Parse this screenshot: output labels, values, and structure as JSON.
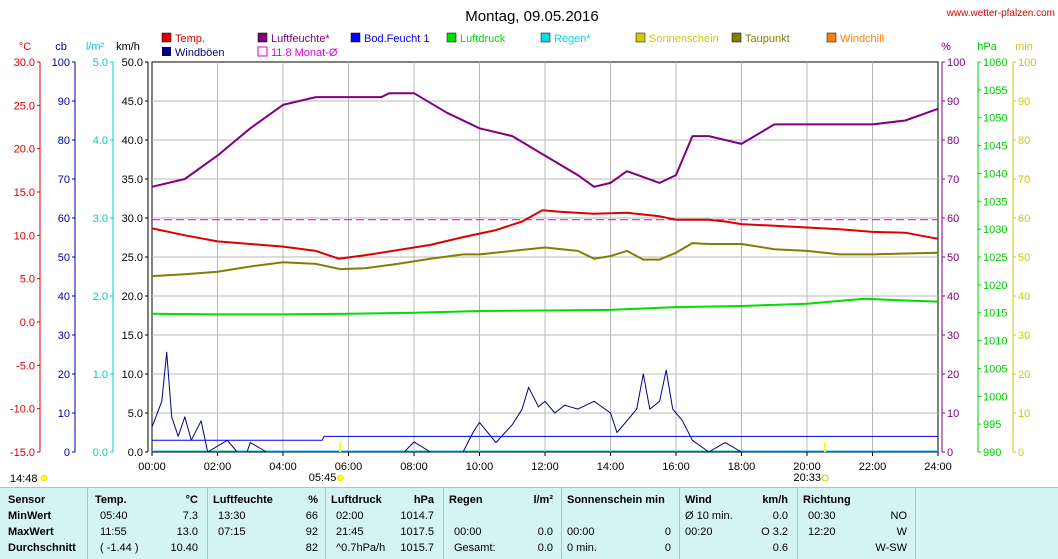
{
  "header": {
    "title": "Montag, 09.05.2016",
    "site": "www.wetter-pfalzen.com"
  },
  "axes": {
    "left_units": [
      "°C",
      "cb",
      "l/m²",
      "km/h"
    ],
    "right_units": [
      "%",
      "hPa",
      "min"
    ],
    "temp_ticks": [
      "30.0",
      "25.0",
      "20.0",
      "15.0",
      "10.0",
      "5.0",
      "0.0",
      "-5.0",
      "-10.0",
      "-15.0"
    ],
    "cb_ticks": [
      "100",
      "90",
      "80",
      "70",
      "60",
      "50",
      "40",
      "30",
      "20",
      "10",
      "0"
    ],
    "rain_ticks": [
      "5.0",
      "4.0",
      "3.0",
      "2.0",
      "1.0",
      "0.0"
    ],
    "wind_ticks": [
      "50.0",
      "45.0",
      "40.0",
      "35.0",
      "30.0",
      "25.0",
      "20.0",
      "15.0",
      "10.0",
      "5.0",
      "0.0"
    ],
    "hum_ticks": [
      "100",
      "90",
      "80",
      "70",
      "60",
      "50",
      "40",
      "30",
      "20",
      "10",
      "0"
    ],
    "pres_ticks": [
      "1060",
      "1055",
      "1050",
      "1045",
      "1040",
      "1035",
      "1030",
      "1025",
      "1020",
      "1015",
      "1010",
      "1005",
      "1000",
      "995",
      "990"
    ],
    "sun_ticks": [
      "100",
      "90",
      "80",
      "70",
      "60",
      "50",
      "40",
      "30",
      "20",
      "10",
      "0"
    ],
    "x_ticks": [
      "00:00",
      "02:00",
      "04:00",
      "06:00",
      "08:00",
      "10:00",
      "12:00",
      "14:00",
      "16:00",
      "18:00",
      "20:00",
      "22:00",
      "24:00"
    ]
  },
  "sun_events": {
    "left_time": "14:48",
    "sunrise": "05:45",
    "sunset": "20:33"
  },
  "legend": {
    "row1": [
      {
        "label": "Temp.",
        "color": "#dd0000"
      },
      {
        "label": "Luftfeuchte*",
        "color": "#800080"
      },
      {
        "label": "Bod.Feucht 1",
        "color": "#0000ff"
      },
      {
        "label": "Luftdruck",
        "color": "#00dd00"
      },
      {
        "label": "Regen*",
        "color": "#00dddd"
      },
      {
        "label": "Sonnenschein",
        "color": "#cccc00"
      },
      {
        "label": "Taupunkt",
        "color": "#808000"
      },
      {
        "label": "Windchill",
        "color": "#ff8000"
      }
    ],
    "row2": [
      {
        "label": "Windböen",
        "color": "#000080"
      },
      {
        "label": "11.8 Monat-Ø",
        "color": "#dd00dd"
      }
    ]
  },
  "chart_data": {
    "type": "line",
    "x_unit": "hours",
    "xlim": [
      0,
      24
    ],
    "temp_ylim": [
      -15,
      30
    ],
    "hum_ylim": [
      0,
      100
    ],
    "pres_ylim": [
      990,
      1060
    ],
    "wind_ylim": [
      0,
      50
    ],
    "monthly_avg_temp": 11.8,
    "series": [
      {
        "name": "Temp.",
        "axis": "temp",
        "color": "#dd0000",
        "points": [
          [
            0,
            10.8
          ],
          [
            1,
            10.0
          ],
          [
            2,
            9.3
          ],
          [
            3,
            9.0
          ],
          [
            4,
            8.7
          ],
          [
            5,
            8.2
          ],
          [
            5.7,
            7.3
          ],
          [
            6.5,
            7.7
          ],
          [
            7.5,
            8.3
          ],
          [
            8.5,
            8.9
          ],
          [
            9.5,
            9.8
          ],
          [
            10.5,
            10.6
          ],
          [
            11.3,
            11.6
          ],
          [
            11.92,
            12.9
          ],
          [
            12.5,
            12.7
          ],
          [
            13.5,
            12.5
          ],
          [
            14.5,
            12.6
          ],
          [
            15.5,
            12.2
          ],
          [
            16,
            11.8
          ],
          [
            17,
            11.8
          ],
          [
            17.5,
            11.6
          ],
          [
            18,
            11.3
          ],
          [
            19,
            11.1
          ],
          [
            20,
            10.9
          ],
          [
            21,
            10.7
          ],
          [
            22,
            10.4
          ],
          [
            23,
            10.3
          ],
          [
            24,
            9.6
          ]
        ]
      },
      {
        "name": "Luftfeuchte*",
        "axis": "hum",
        "color": "#800080",
        "points": [
          [
            0,
            68
          ],
          [
            1,
            70
          ],
          [
            2,
            76
          ],
          [
            3,
            83
          ],
          [
            4,
            89
          ],
          [
            5,
            91
          ],
          [
            6,
            91
          ],
          [
            7,
            91
          ],
          [
            7.25,
            92
          ],
          [
            8,
            92
          ],
          [
            9,
            87
          ],
          [
            10,
            83
          ],
          [
            11,
            81
          ],
          [
            12,
            76
          ],
          [
            13,
            71
          ],
          [
            13.5,
            68
          ],
          [
            14,
            69
          ],
          [
            14.5,
            72
          ],
          [
            15.5,
            69
          ],
          [
            16,
            71
          ],
          [
            16.5,
            81
          ],
          [
            17,
            81
          ],
          [
            18,
            79
          ],
          [
            19,
            84
          ],
          [
            20,
            84
          ],
          [
            21,
            84
          ],
          [
            22,
            84
          ],
          [
            23,
            85
          ],
          [
            24,
            88
          ]
        ]
      },
      {
        "name": "Taupunkt",
        "axis": "temp",
        "color": "#808000",
        "points": [
          [
            0,
            5.3
          ],
          [
            1,
            5.5
          ],
          [
            2,
            5.8
          ],
          [
            3,
            6.4
          ],
          [
            4,
            6.9
          ],
          [
            5,
            6.7
          ],
          [
            5.75,
            6.1
          ],
          [
            6.5,
            6.2
          ],
          [
            7.5,
            6.7
          ],
          [
            8.5,
            7.3
          ],
          [
            9.5,
            7.8
          ],
          [
            10,
            7.8
          ],
          [
            11,
            8.2
          ],
          [
            12,
            8.6
          ],
          [
            13,
            8.2
          ],
          [
            13.5,
            7.3
          ],
          [
            14,
            7.6
          ],
          [
            14.5,
            8.2
          ],
          [
            15,
            7.2
          ],
          [
            15.5,
            7.2
          ],
          [
            16,
            8.0
          ],
          [
            16.5,
            9.1
          ],
          [
            17,
            9.0
          ],
          [
            18,
            9.0
          ],
          [
            19,
            8.4
          ],
          [
            20,
            8.2
          ],
          [
            21,
            7.8
          ],
          [
            22,
            7.8
          ],
          [
            23,
            7.9
          ],
          [
            24,
            8.0
          ]
        ]
      },
      {
        "name": "Luftdruck",
        "axis": "pres",
        "color": "#00dd00",
        "points": [
          [
            0,
            1014.8
          ],
          [
            2,
            1014.7
          ],
          [
            4,
            1014.7
          ],
          [
            6,
            1014.8
          ],
          [
            8,
            1015.0
          ],
          [
            10,
            1015.3
          ],
          [
            12,
            1015.4
          ],
          [
            14,
            1015.5
          ],
          [
            16,
            1016.0
          ],
          [
            18,
            1016.2
          ],
          [
            20,
            1016.6
          ],
          [
            21.75,
            1017.5
          ],
          [
            23,
            1017.2
          ],
          [
            24,
            1017.0
          ]
        ]
      },
      {
        "name": "Windböen",
        "axis": "wind",
        "color": "#000080",
        "points": [
          [
            0,
            3.2
          ],
          [
            0.3,
            6.5
          ],
          [
            0.45,
            12.8
          ],
          [
            0.6,
            4.5
          ],
          [
            0.8,
            2.0
          ],
          [
            1.0,
            4.5
          ],
          [
            1.2,
            1.5
          ],
          [
            1.5,
            4.0
          ],
          [
            1.7,
            0
          ],
          [
            2.3,
            1.5
          ],
          [
            2.6,
            0
          ],
          [
            2.9,
            0
          ],
          [
            3.0,
            1.2
          ],
          [
            3.5,
            0
          ],
          [
            4.5,
            0
          ],
          [
            5,
            0
          ],
          [
            7.7,
            0
          ],
          [
            8.0,
            1.3
          ],
          [
            8.5,
            0
          ],
          [
            9.5,
            0
          ],
          [
            9.8,
            2.5
          ],
          [
            10,
            3.8
          ],
          [
            10.5,
            1.2
          ],
          [
            11,
            3.5
          ],
          [
            11.3,
            5.5
          ],
          [
            11.5,
            8.3
          ],
          [
            11.8,
            5.8
          ],
          [
            12,
            6.5
          ],
          [
            12.3,
            5.0
          ],
          [
            12.6,
            6.0
          ],
          [
            13,
            5.5
          ],
          [
            13.5,
            6.5
          ],
          [
            14,
            5.0
          ],
          [
            14.2,
            2.5
          ],
          [
            14.5,
            4.0
          ],
          [
            14.8,
            5.5
          ],
          [
            15,
            10.0
          ],
          [
            15.2,
            5.5
          ],
          [
            15.5,
            6.5
          ],
          [
            15.7,
            10.5
          ],
          [
            15.9,
            5.5
          ],
          [
            16.2,
            4.0
          ],
          [
            16.5,
            1.5
          ],
          [
            17,
            0
          ],
          [
            17.5,
            1.2
          ],
          [
            18,
            0
          ],
          [
            24,
            0
          ]
        ]
      },
      {
        "name": "Bod.Feucht 1",
        "axis": "cb",
        "color": "#0000ff",
        "points": [
          [
            0,
            3
          ],
          [
            5.2,
            3
          ],
          [
            5.25,
            4
          ],
          [
            24,
            4
          ]
        ]
      }
    ]
  },
  "table": {
    "headers": [
      {
        "label": "Sensor",
        "unit": ""
      },
      {
        "label": "Temp.",
        "unit": "°C"
      },
      {
        "label": "Luftfeuchte",
        "unit": "%"
      },
      {
        "label": "Luftdruck",
        "unit": "hPa"
      },
      {
        "label": "Regen",
        "unit": "l/m²"
      },
      {
        "label": "Sonnenschein min",
        "unit": ""
      },
      {
        "label": "Wind",
        "unit": "km/h"
      },
      {
        "label": "Richtung",
        "unit": ""
      }
    ],
    "rows": [
      {
        "label": "MinWert",
        "temp": [
          "05:40",
          "7.3"
        ],
        "hum": [
          "13:30",
          "66"
        ],
        "pres": [
          "02:00",
          "1014.7"
        ],
        "rain": [
          "",
          ""
        ],
        "sun": [
          "",
          ""
        ],
        "wind": [
          "Ø 10 min.",
          "0.0"
        ],
        "dir": [
          "00:30",
          "NO"
        ]
      },
      {
        "label": "MaxWert",
        "temp": [
          "11:55",
          "13.0"
        ],
        "hum": [
          "07:15",
          "92"
        ],
        "pres": [
          "21:45",
          "1017.5"
        ],
        "rain": [
          "00:00",
          "0.0"
        ],
        "sun": [
          "00:00",
          "0"
        ],
        "wind": [
          "00:20",
          "O 3.2"
        ],
        "dir": [
          "12:20",
          "W"
        ]
      },
      {
        "label": "Durchschnitt",
        "temp": [
          "( -1.44 )",
          "10.40"
        ],
        "hum": [
          "",
          "82"
        ],
        "pres": [
          "^0.7hPa/h",
          "1015.7"
        ],
        "rain": [
          "Gesamt:",
          "0.0"
        ],
        "sun": [
          "0 min.",
          "0"
        ],
        "wind": [
          "",
          "0.6"
        ],
        "dir": [
          "",
          "W-SW"
        ]
      }
    ]
  }
}
